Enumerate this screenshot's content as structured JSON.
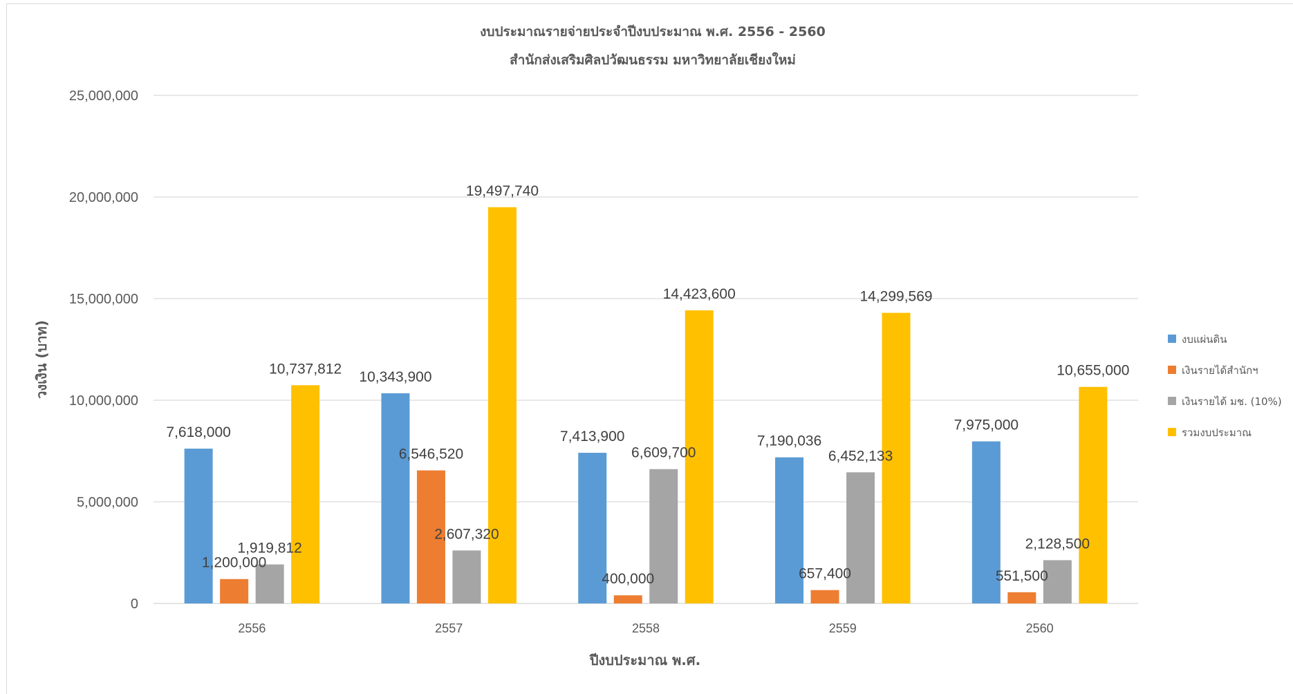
{
  "chart_data": {
    "type": "bar",
    "title": "งบประมาณรายจ่ายประจำปีงบประมาณ พ.ศ. 2556 - 2560",
    "subtitle": "สำนักส่งเสริมศิลปวัฒนธรรม มหาวิทยาลัยเชียงใหม่",
    "xlabel": "ปีงบประมาณ พ.ศ.",
    "ylabel": "วงเงิน (บาท)",
    "categories": [
      "2556",
      "2557",
      "2558",
      "2559",
      "2560"
    ],
    "ylim": [
      0,
      25000000
    ],
    "yticks": [
      0,
      5000000,
      10000000,
      15000000,
      20000000,
      25000000
    ],
    "ytick_labels": [
      "0",
      "5,000,000",
      "10,000,000",
      "15,000,000",
      "20,000,000",
      "25,000,000"
    ],
    "grid": true,
    "legend_position": "right",
    "series": [
      {
        "name": "งบแผ่นดิน",
        "color": "#5B9BD5",
        "values": [
          7618000,
          10343900,
          7413900,
          7190036,
          7975000
        ],
        "labels": [
          "7,618,000",
          "10,343,900",
          "7,413,900",
          "7,190,036",
          "7,975,000"
        ]
      },
      {
        "name": "เงินรายได้สำนักฯ",
        "color": "#ED7D31",
        "values": [
          1200000,
          6546520,
          400000,
          657400,
          551500
        ],
        "labels": [
          "1,200,000",
          "6,546,520",
          "400,000",
          "657,400",
          "551,500"
        ]
      },
      {
        "name": "เงินรายได้ มช. (10%)",
        "color": "#A5A5A5",
        "values": [
          1919812,
          2607320,
          6609700,
          6452133,
          2128500
        ],
        "labels": [
          "1,919,812",
          "2,607,320",
          "6,609,700",
          "6,452,133",
          "2,128,500"
        ]
      },
      {
        "name": "รวมงบประมาณ",
        "color": "#FFC000",
        "values": [
          10737812,
          19497740,
          14423600,
          14299569,
          10655000
        ],
        "labels": [
          "10,737,812",
          "19,497,740",
          "14,423,600",
          "14,299,569",
          "10,655,000"
        ]
      }
    ]
  }
}
